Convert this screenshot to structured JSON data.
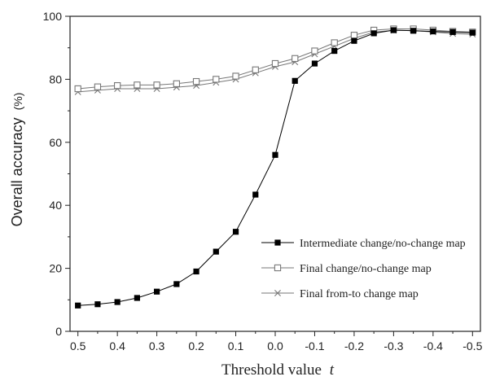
{
  "chart_data": {
    "type": "line",
    "xlabel": "Threshold value",
    "xlabel_var": "t",
    "ylabel": "Overall accuracy",
    "ylabel_unit": "(%)",
    "x": [
      0.5,
      0.45,
      0.4,
      0.35,
      0.3,
      0.25,
      0.2,
      0.15,
      0.1,
      0.05,
      0.0,
      -0.05,
      -0.1,
      -0.15,
      -0.2,
      -0.25,
      -0.3,
      -0.35,
      -0.4,
      -0.45,
      -0.5
    ],
    "x_ticks": [
      "0.5",
      "0.4",
      "0.3",
      "0.2",
      "0.1",
      "0.0",
      "-0.1",
      "-0.2",
      "-0.3",
      "-0.4",
      "-0.5"
    ],
    "y_ticks": [
      "0",
      "20",
      "40",
      "60",
      "80",
      "100"
    ],
    "xlim": [
      0.52,
      -0.52
    ],
    "ylim": [
      0,
      100
    ],
    "grid": false,
    "legend_position": "lower-right",
    "series": [
      {
        "name": "Intermediate change/no-change map",
        "marker": "filled-square",
        "color": "#000000",
        "values": [
          8.2,
          8.6,
          9.3,
          10.6,
          12.6,
          15.0,
          19.0,
          25.3,
          31.6,
          43.4,
          56.0,
          79.5,
          85.0,
          89.0,
          92.2,
          94.6,
          95.6,
          95.4,
          95.2,
          95.0,
          94.8
        ]
      },
      {
        "name": "Final change/no-change map",
        "marker": "open-square",
        "color": "#777777",
        "values": [
          77.0,
          77.6,
          78.0,
          78.2,
          78.2,
          78.6,
          79.3,
          80.0,
          81.0,
          83.0,
          85.0,
          86.6,
          89.0,
          91.6,
          94.0,
          95.6,
          96.0,
          96.0,
          95.6,
          95.2,
          95.0
        ]
      },
      {
        "name": "Final from-to change map",
        "marker": "cross",
        "color": "#777777",
        "values": [
          76.0,
          76.5,
          77.0,
          77.0,
          77.0,
          77.5,
          78.0,
          79.0,
          80.0,
          82.0,
          84.0,
          85.5,
          88.0,
          90.5,
          93.0,
          95.0,
          95.5,
          95.5,
          95.0,
          94.5,
          94.3
        ]
      }
    ]
  }
}
